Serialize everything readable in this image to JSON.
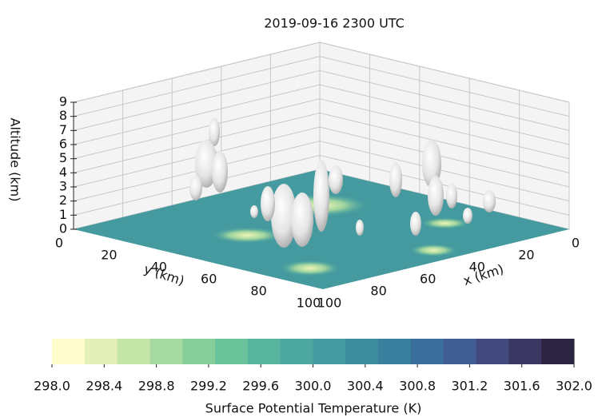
{
  "chart_data": {
    "type": "3d-surface",
    "title": "2019-09-16 2300 UTC",
    "xlabel": "x (km)",
    "ylabel": "y (km)",
    "zlabel": "Altitude (km)",
    "xlim": [
      0,
      100
    ],
    "xticks": [
      0,
      20,
      40,
      60,
      80,
      100
    ],
    "ylim": [
      0,
      100
    ],
    "yticks": [
      0,
      20,
      40,
      60,
      80,
      100
    ],
    "zlim": [
      0,
      9
    ],
    "zticks": [
      0,
      1,
      2,
      3,
      4,
      5,
      6,
      7,
      8,
      9
    ],
    "grid": true,
    "colorbar": {
      "label": "Surface Potential Temperature (K)",
      "lim": [
        298,
        302
      ],
      "ticks": [
        {
          "value": 298,
          "label": "298.0"
        },
        {
          "value": 298.4,
          "label": "298.4"
        },
        {
          "value": 298.8,
          "label": "298.8"
        },
        {
          "value": 299.2,
          "label": "299.2"
        },
        {
          "value": 299.6,
          "label": "299.6"
        },
        {
          "value": 300,
          "label": "300.0"
        },
        {
          "value": 300.4,
          "label": "300.4"
        },
        {
          "value": 300.8,
          "label": "300.8"
        },
        {
          "value": 301.2,
          "label": "301.2"
        },
        {
          "value": 301.6,
          "label": "301.6"
        },
        {
          "value": 302,
          "label": "302.0"
        }
      ],
      "colors": [
        "#fffdcd",
        "#e3f1b8",
        "#c6e6a9",
        "#a5d99f",
        "#86cf9a",
        "#6ac39b",
        "#58b59d",
        "#4ca89f",
        "#449a9f",
        "#3e8d9f",
        "#3a7f9e",
        "#3b6f9b",
        "#3f5d92",
        "#41497d",
        "#3a3763",
        "#2b2441"
      ]
    }
  }
}
